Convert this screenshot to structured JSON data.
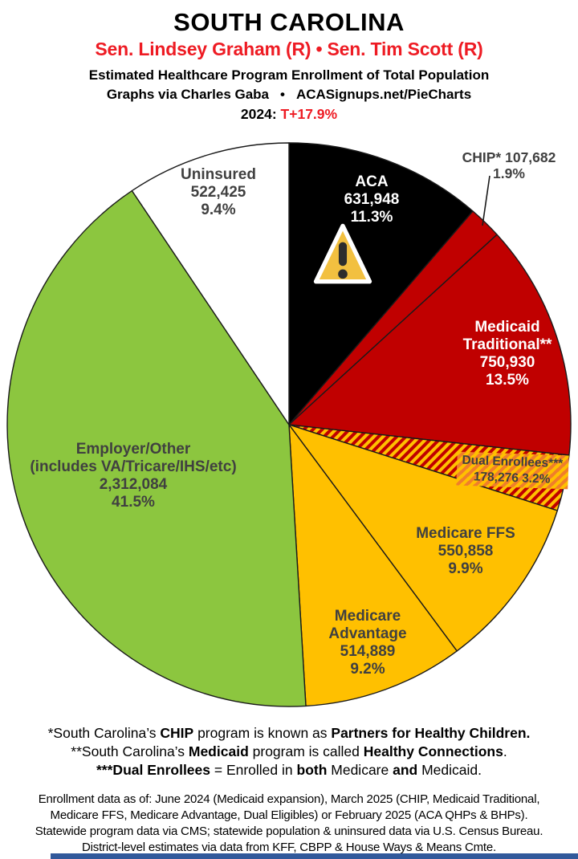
{
  "header": {
    "title": "SOUTH CAROLINA",
    "senators": "Sen. Lindsey Graham (R) • Sen. Tim Scott (R)",
    "subtitle": "Estimated Healthcare Program Enrollment of Total Population",
    "credit": "Graphs via Charles Gaba",
    "bullet": "•",
    "site": "ACASignups.net/PieCharts",
    "year_label": "2024:",
    "lean_value": "T+17.9%"
  },
  "colors": {
    "header_red": "#EE1B23",
    "label_gray": "#404040",
    "outline": "#1A1A1A",
    "bottom_bar": "#31599B",
    "warning_triangle": "#F2C040",
    "warning_mark": "#2D2D2D",
    "warning_border": "#FFFFFF"
  },
  "chart_data": {
    "type": "pie",
    "title": "Estimated Healthcare Program Enrollment of Total Population",
    "start_angle_deg": 0,
    "direction": "clockwise",
    "hatch": {
      "bg": "#C00000",
      "stripe": "#FFC000"
    },
    "label_box_hatch": {
      "bg": "#FFC000",
      "stripe": "#F07E2A"
    },
    "slices": [
      {
        "id": "aca",
        "label": "ACA",
        "value": 631948,
        "value_text": "631,948",
        "pct": 11.3,
        "pct_text": "11.3%",
        "color": "#000000",
        "label_color": "#FFFFFF",
        "lines": [
          "ACA",
          "631,948",
          "11.3%"
        ]
      },
      {
        "id": "chip",
        "label": "CHIP*",
        "value": 107682,
        "value_text": "107,682",
        "pct": 1.9,
        "pct_text": "1.9%",
        "color": "#C00000",
        "label_color": "#404040",
        "label_outside": true,
        "lines": [
          "CHIP* 107,682",
          "1.9%"
        ]
      },
      {
        "id": "medicaid-traditional",
        "label": "Medicaid Traditional**",
        "value": 750930,
        "value_text": "750,930",
        "pct": 13.5,
        "pct_text": "13.5%",
        "color": "#C00000",
        "label_color": "#FFFFFF",
        "lines": [
          "Medicaid",
          "Traditional**",
          "750,930",
          "13.5%"
        ]
      },
      {
        "id": "dual-enrollees",
        "label": "Dual Enrollees***",
        "value": 178276,
        "value_text": "178,276",
        "pct": 3.2,
        "pct_text": "3.2%",
        "color": "hatch",
        "label_color": "#3F3F3F",
        "lines": [
          "Dual Enrollees***",
          "178,276 3.2%"
        ]
      },
      {
        "id": "medicare-ffs",
        "label": "Medicare FFS",
        "value": 550858,
        "value_text": "550,858",
        "pct": 9.9,
        "pct_text": "9.9%",
        "color": "#FFC000",
        "label_color": "#404040",
        "lines": [
          "Medicare FFS",
          "550,858",
          "9.9%"
        ]
      },
      {
        "id": "medicare-advantage",
        "label": "Medicare Advantage",
        "value": 514889,
        "value_text": "514,889",
        "pct": 9.2,
        "pct_text": "9.2%",
        "color": "#FFC000",
        "label_color": "#404040",
        "lines": [
          "Medicare",
          "Advantage",
          "514,889",
          "9.2%"
        ]
      },
      {
        "id": "employer-other",
        "label": "Employer/Other (includes VA/Tricare/IHS/etc)",
        "value": 2312084,
        "value_text": "2,312,084",
        "pct": 41.5,
        "pct_text": "41.5%",
        "color": "#8CC63F",
        "label_color": "#404040",
        "lines": [
          "Employer/Other",
          "(includes VA/Tricare/IHS/etc)",
          "2,312,084",
          "41.5%"
        ]
      },
      {
        "id": "uninsured",
        "label": "Uninsured",
        "value": 522425,
        "value_text": "522,425",
        "pct": 9.4,
        "pct_text": "9.4%",
        "color": "#FFFFFF",
        "label_color": "#404040",
        "lines": [
          "Uninsured",
          "522,425",
          "9.4%"
        ]
      }
    ]
  },
  "footnotes": [
    {
      "segments": [
        {
          "t": "*South Carolina’s ",
          "b": false
        },
        {
          "t": "CHIP",
          "b": true
        },
        {
          "t": " program is known as ",
          "b": false
        },
        {
          "t": "Partners for Healthy Children.",
          "b": true
        }
      ]
    },
    {
      "segments": [
        {
          "t": "**South Carolina’s ",
          "b": false
        },
        {
          "t": "Medicaid",
          "b": true
        },
        {
          "t": " program is called ",
          "b": false
        },
        {
          "t": "Healthy Connections",
          "b": true
        },
        {
          "t": ".",
          "b": false
        }
      ]
    },
    {
      "segments": [
        {
          "t": "***Dual Enrollees",
          "b": true
        },
        {
          "t": " = Enrolled in ",
          "b": false
        },
        {
          "t": "both",
          "b": true
        },
        {
          "t": " Medicare ",
          "b": false
        },
        {
          "t": "and",
          "b": true
        },
        {
          "t": " Medicaid.",
          "b": false
        }
      ]
    }
  ],
  "source_note": [
    "Enrollment data as of: June 2024 (Medicaid expansion), March 2025 (CHIP, Medicaid Traditional,",
    "Medicare FFS, Medicare Advantage, Dual Eligibles) or February 2025 (ACA QHPs & BHPs).",
    "Statewide program data via CMS; statewide population & uninsured data via U.S. Census Bureau.",
    "District-level estimates via data from KFF, CBPP & House Ways & Means Cmte."
  ]
}
